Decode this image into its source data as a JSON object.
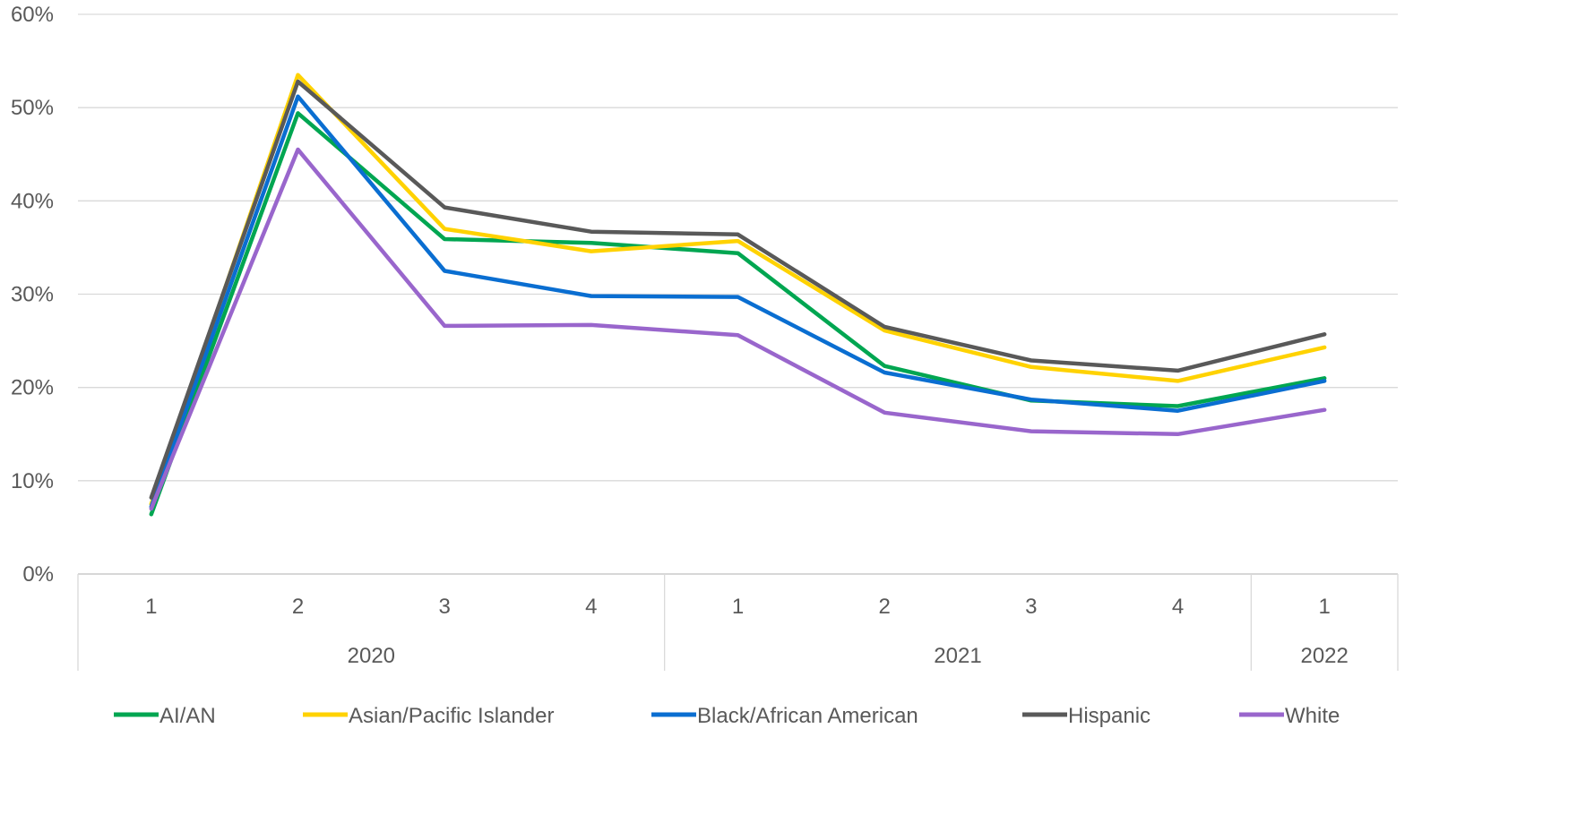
{
  "chart_data": {
    "type": "line",
    "ylim": [
      0,
      60
    ],
    "yticks": [
      "0%",
      "10%",
      "20%",
      "30%",
      "40%",
      "50%",
      "60%"
    ],
    "categories": [
      "1",
      "2",
      "3",
      "4",
      "1",
      "2",
      "3",
      "4",
      "1"
    ],
    "groups": [
      {
        "label": "2020",
        "count": 4
      },
      {
        "label": "2021",
        "count": 4
      },
      {
        "label": "2022",
        "count": 1
      }
    ],
    "grid": true,
    "legend_position": "bottom",
    "series": [
      {
        "name": "AI/AN",
        "color": "#00A651",
        "values": [
          6.4,
          49.4,
          35.9,
          35.5,
          34.4,
          22.3,
          18.6,
          18.0,
          21.0
        ]
      },
      {
        "name": "Asian/Pacific Islander",
        "color": "#FFD200",
        "values": [
          7.5,
          53.5,
          37.0,
          34.6,
          35.7,
          26.1,
          22.2,
          20.7,
          24.3
        ]
      },
      {
        "name": "Black/African American",
        "color": "#0A6ED1",
        "values": [
          7.2,
          51.2,
          32.5,
          29.8,
          29.7,
          21.6,
          18.7,
          17.5,
          20.7
        ]
      },
      {
        "name": "Hispanic",
        "color": "#595959",
        "values": [
          8.2,
          52.8,
          39.3,
          36.7,
          36.4,
          26.5,
          22.9,
          21.8,
          25.7
        ]
      },
      {
        "name": "White",
        "color": "#9966CC",
        "values": [
          7.0,
          45.5,
          26.6,
          26.7,
          25.6,
          17.3,
          15.3,
          15.0,
          17.6
        ]
      }
    ]
  }
}
